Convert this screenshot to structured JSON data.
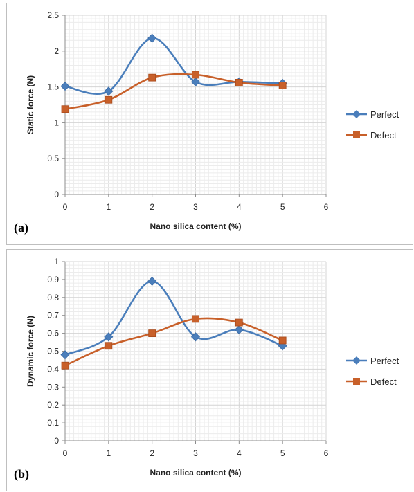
{
  "chart_data": [
    {
      "type": "line",
      "panel_label": "(a)",
      "title": "",
      "xlabel": "Nano silica content (%)",
      "ylabel": "Static force (N)",
      "xlim": [
        0,
        6
      ],
      "ylim": [
        0,
        2.5
      ],
      "xticks": [
        "0",
        "1",
        "2",
        "3",
        "4",
        "5",
        "6"
      ],
      "yticks": [
        "0",
        "0.5",
        "1",
        "1.5",
        "2",
        "2.5"
      ],
      "grid": true,
      "legend_position": "right",
      "x": [
        0,
        1,
        2,
        3,
        4,
        5
      ],
      "series": [
        {
          "name": "Perfect",
          "values": [
            1.51,
            1.44,
            2.18,
            1.57,
            1.57,
            1.55
          ],
          "color": "#4a7ebb",
          "marker": "diamond"
        },
        {
          "name": "Defect",
          "values": [
            1.19,
            1.32,
            1.63,
            1.67,
            1.56,
            1.52
          ],
          "color": "#c8602a",
          "marker": "square"
        }
      ]
    },
    {
      "type": "line",
      "panel_label": "(b)",
      "title": "",
      "xlabel": "Nano silica content (%)",
      "ylabel": "Dynamic force (N)",
      "xlim": [
        0,
        6
      ],
      "ylim": [
        0,
        1
      ],
      "xticks": [
        "0",
        "1",
        "2",
        "3",
        "4",
        "5",
        "6"
      ],
      "yticks": [
        "0",
        "0.1",
        "0.2",
        "0.3",
        "0.4",
        "0.5",
        "0.6",
        "0.7",
        "0.8",
        "0.9",
        "1"
      ],
      "grid": true,
      "legend_position": "right",
      "x": [
        0,
        1,
        2,
        3,
        4,
        5
      ],
      "series": [
        {
          "name": "Perfect",
          "values": [
            0.48,
            0.58,
            0.89,
            0.58,
            0.62,
            0.53
          ],
          "color": "#4a7ebb",
          "marker": "diamond"
        },
        {
          "name": "Defect",
          "values": [
            0.42,
            0.53,
            0.6,
            0.68,
            0.66,
            0.56
          ],
          "color": "#c8602a",
          "marker": "square"
        }
      ]
    }
  ]
}
